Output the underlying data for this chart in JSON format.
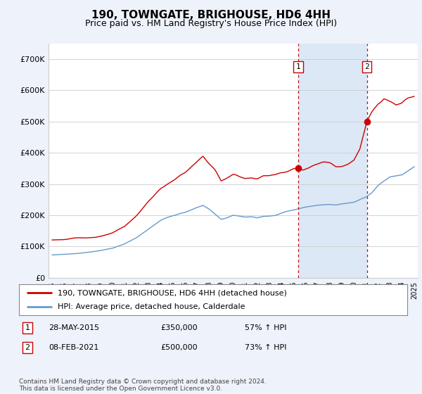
{
  "title": "190, TOWNGATE, BRIGHOUSE, HD6 4HH",
  "subtitle": "Price paid vs. HM Land Registry's House Price Index (HPI)",
  "ylim": [
    0,
    750000
  ],
  "yticks": [
    0,
    100000,
    200000,
    300000,
    400000,
    500000,
    600000,
    700000
  ],
  "ytick_labels": [
    "£0",
    "£100K",
    "£200K",
    "£300K",
    "£400K",
    "£500K",
    "£600K",
    "£700K"
  ],
  "sale1_date_num": 2015.38,
  "sale1_price": 350000,
  "sale1_label": "1",
  "sale1_text": "28-MAY-2015",
  "sale1_pct": "57% ↑ HPI",
  "sale2_date_num": 2021.09,
  "sale2_price": 500000,
  "sale2_label": "2",
  "sale2_text": "08-FEB-2021",
  "sale2_pct": "73% ↑ HPI",
  "line_color_property": "#cc0000",
  "line_color_hpi": "#6699cc",
  "vline_color": "#cc0000",
  "background_color": "#eef2fa",
  "plot_bg": "#ffffff",
  "span_color": "#dce8f5",
  "legend1": "190, TOWNGATE, BRIGHOUSE, HD6 4HH (detached house)",
  "legend2": "HPI: Average price, detached house, Calderdale",
  "footer": "Contains HM Land Registry data © Crown copyright and database right 2024.\nThis data is licensed under the Open Government Licence v3.0.",
  "title_fontsize": 11,
  "subtitle_fontsize": 9,
  "prop_keypoints_x": [
    1995.0,
    1996.0,
    1997.0,
    1998.0,
    1999.0,
    2000.0,
    2001.0,
    2002.0,
    2003.0,
    2004.0,
    2005.0,
    2006.0,
    2007.0,
    2007.5,
    2008.0,
    2008.5,
    2009.0,
    2009.5,
    2010.0,
    2010.5,
    2011.0,
    2011.5,
    2012.0,
    2012.5,
    2013.0,
    2013.5,
    2014.0,
    2014.5,
    2015.0,
    2015.38,
    2015.8,
    2016.0,
    2016.5,
    2017.0,
    2017.5,
    2018.0,
    2018.5,
    2019.0,
    2019.5,
    2020.0,
    2020.5,
    2021.09,
    2021.5,
    2022.0,
    2022.5,
    2023.0,
    2023.5,
    2024.0,
    2024.5,
    2025.0
  ],
  "prop_keypoints_y": [
    120000,
    122000,
    125000,
    128000,
    132000,
    140000,
    160000,
    195000,
    240000,
    280000,
    305000,
    330000,
    360000,
    375000,
    355000,
    335000,
    300000,
    310000,
    320000,
    315000,
    310000,
    315000,
    310000,
    320000,
    320000,
    325000,
    335000,
    340000,
    348000,
    350000,
    345000,
    348000,
    355000,
    360000,
    365000,
    365000,
    358000,
    362000,
    370000,
    380000,
    415000,
    500000,
    530000,
    560000,
    580000,
    570000,
    560000,
    570000,
    590000,
    600000
  ],
  "hpi_keypoints_x": [
    1995.0,
    1996.0,
    1997.0,
    1998.0,
    1999.0,
    2000.0,
    2001.0,
    2002.0,
    2003.0,
    2004.0,
    2005.0,
    2006.0,
    2007.0,
    2007.5,
    2008.0,
    2008.5,
    2009.0,
    2009.5,
    2010.0,
    2010.5,
    2011.0,
    2011.5,
    2012.0,
    2012.5,
    2013.0,
    2013.5,
    2014.0,
    2014.5,
    2015.0,
    2015.5,
    2016.0,
    2016.5,
    2017.0,
    2017.5,
    2018.0,
    2018.5,
    2019.0,
    2019.5,
    2020.0,
    2020.5,
    2021.0,
    2021.5,
    2022.0,
    2022.5,
    2023.0,
    2023.5,
    2024.0,
    2024.5,
    2025.0
  ],
  "hpi_keypoints_y": [
    73000,
    75000,
    78000,
    82000,
    88000,
    96000,
    110000,
    130000,
    158000,
    185000,
    200000,
    210000,
    225000,
    232000,
    220000,
    205000,
    188000,
    192000,
    200000,
    198000,
    195000,
    196000,
    192000,
    196000,
    196000,
    198000,
    205000,
    210000,
    214000,
    218000,
    222000,
    225000,
    228000,
    230000,
    232000,
    230000,
    234000,
    236000,
    240000,
    248000,
    255000,
    268000,
    290000,
    305000,
    318000,
    320000,
    322000,
    335000,
    348000
  ]
}
